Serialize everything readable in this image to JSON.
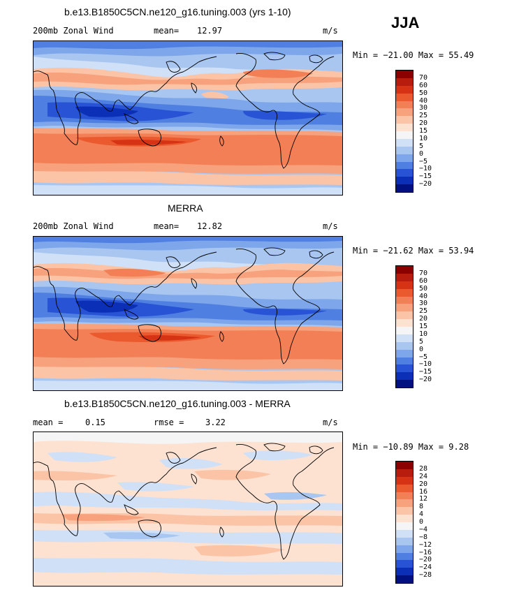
{
  "season": "JJA",
  "panels": [
    {
      "title": "b.e13.B1850C5CN.ne120_g16.tuning.003 (yrs 1-10)",
      "left_label": "200mb Zonal Wind",
      "mid_label": "mean=",
      "mid_value": "12.97",
      "units": "m/s",
      "minmax": "Min = −21.00 Max =  55.49",
      "levels": [
        "70",
        "60",
        "50",
        "40",
        "30",
        "25",
        "20",
        "15",
        "10",
        "5",
        "0",
        "−5",
        "−10",
        "−15",
        "−20"
      ],
      "colors": [
        "#8b0000",
        "#b81c0d",
        "#d63214",
        "#eb5a2e",
        "#f27f55",
        "#f7a27d",
        "#fbc4a7",
        "#fde1d1",
        "#f5f5f5",
        "#cfe0f7",
        "#a8c6f0",
        "#7ea6ea",
        "#4f7fe0",
        "#2753d4",
        "#0c2fb7",
        "#01117f"
      ]
    },
    {
      "title": "MERRA",
      "left_label": "200mb Zonal Wind",
      "mid_label": "mean=",
      "mid_value": "12.82",
      "units": "m/s",
      "minmax": "Min = −21.62 Max =  53.94",
      "levels": [
        "70",
        "60",
        "50",
        "40",
        "30",
        "25",
        "20",
        "15",
        "10",
        "5",
        "0",
        "−5",
        "−10",
        "−15",
        "−20"
      ],
      "colors": [
        "#8b0000",
        "#b81c0d",
        "#d63214",
        "#eb5a2e",
        "#f27f55",
        "#f7a27d",
        "#fbc4a7",
        "#fde1d1",
        "#f5f5f5",
        "#cfe0f7",
        "#a8c6f0",
        "#7ea6ea",
        "#4f7fe0",
        "#2753d4",
        "#0c2fb7",
        "#01117f"
      ]
    },
    {
      "title": "b.e13.B1850C5CN.ne120_g16.tuning.003 - MERRA",
      "left_label": "mean =",
      "left_value": "0.15",
      "mid_label": "rmse =",
      "mid_value": "3.22",
      "units": "m/s",
      "minmax": "Min = −10.89 Max =   9.28",
      "levels": [
        "28",
        "24",
        "20",
        "16",
        "12",
        "8",
        "4",
        "0",
        "−4",
        "−8",
        "−12",
        "−16",
        "−20",
        "−24",
        "−28"
      ],
      "colors": [
        "#8b0000",
        "#b81c0d",
        "#d63214",
        "#eb5a2e",
        "#f27f55",
        "#f7a27d",
        "#fbc4a7",
        "#fde1d1",
        "#f5f5f5",
        "#cfe0f7",
        "#a8c6f0",
        "#7ea6ea",
        "#4f7fe0",
        "#2753d4",
        "#0c2fb7",
        "#01117f"
      ]
    }
  ]
}
